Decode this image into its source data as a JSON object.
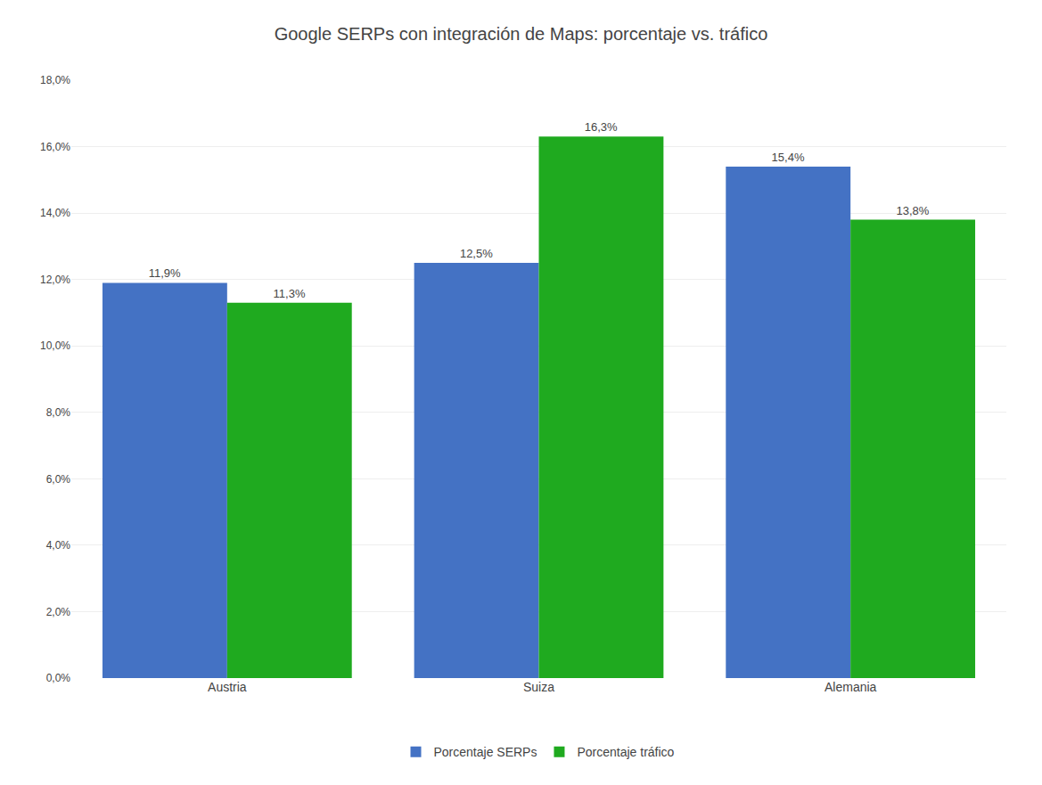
{
  "chart_data": {
    "type": "bar",
    "title": "Google SERPs con integración de Maps: porcentaje vs. tráfico",
    "categories": [
      "Austria",
      "Suiza",
      "Alemania"
    ],
    "series": [
      {
        "name": "Porcentaje SERPs",
        "color": "#4472c4",
        "values": [
          11.9,
          12.5,
          15.4
        ],
        "value_labels": [
          "11,9%",
          "12,5%",
          "15,4%"
        ]
      },
      {
        "name": "Porcentaje tráfico",
        "color": "#1faa1f",
        "values": [
          11.3,
          16.3,
          13.8
        ],
        "value_labels": [
          "11,3%",
          "16,3%",
          "13,8%"
        ]
      }
    ],
    "ylim": [
      0,
      18.0
    ],
    "yticks": [
      {
        "value": 0.0,
        "label": "0,0%"
      },
      {
        "value": 2.0,
        "label": "2,0%"
      },
      {
        "value": 4.0,
        "label": "4,0%"
      },
      {
        "value": 6.0,
        "label": "6,0%"
      },
      {
        "value": 8.0,
        "label": "8,0%"
      },
      {
        "value": 10.0,
        "label": "10,0%"
      },
      {
        "value": 12.0,
        "label": "12,0%"
      },
      {
        "value": 14.0,
        "label": "14,0%"
      },
      {
        "value": 16.0,
        "label": "16,0%"
      },
      {
        "value": 18.0,
        "label": "18,0%"
      }
    ],
    "grid": true,
    "legend": "bottom",
    "data_labels": true
  }
}
